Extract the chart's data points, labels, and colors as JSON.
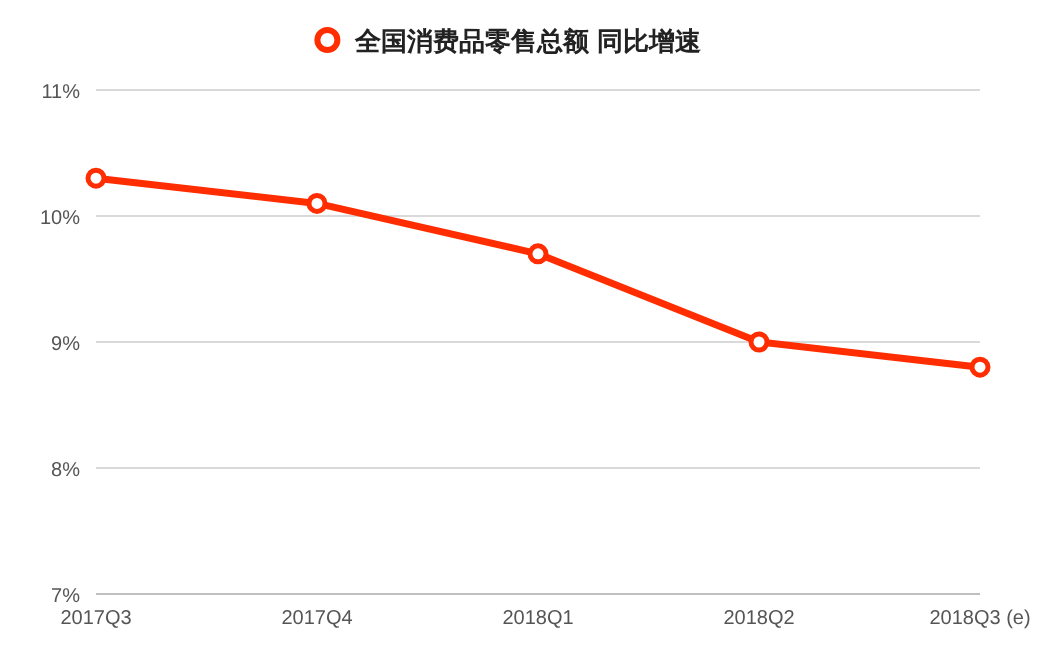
{
  "chart_data": {
    "type": "line",
    "categories": [
      "2017Q3",
      "2017Q4",
      "2018Q1",
      "2018Q2",
      "2018Q3 (e)"
    ],
    "series": [
      {
        "name": "全国消费品零售总额 同比增速",
        "color": "#ff2d00",
        "values": [
          10.3,
          10.1,
          9.7,
          9.0,
          8.8
        ]
      }
    ],
    "ylim": [
      7,
      11
    ],
    "yticks": [
      {
        "value": 7,
        "label": "7%"
      },
      {
        "value": 8,
        "label": "8%"
      },
      {
        "value": 9,
        "label": "9%"
      },
      {
        "value": 10,
        "label": "10%"
      },
      {
        "value": 11,
        "label": "11%"
      }
    ],
    "grid": "y",
    "legend": "top",
    "marker": "circle",
    "line_style": "solid"
  }
}
